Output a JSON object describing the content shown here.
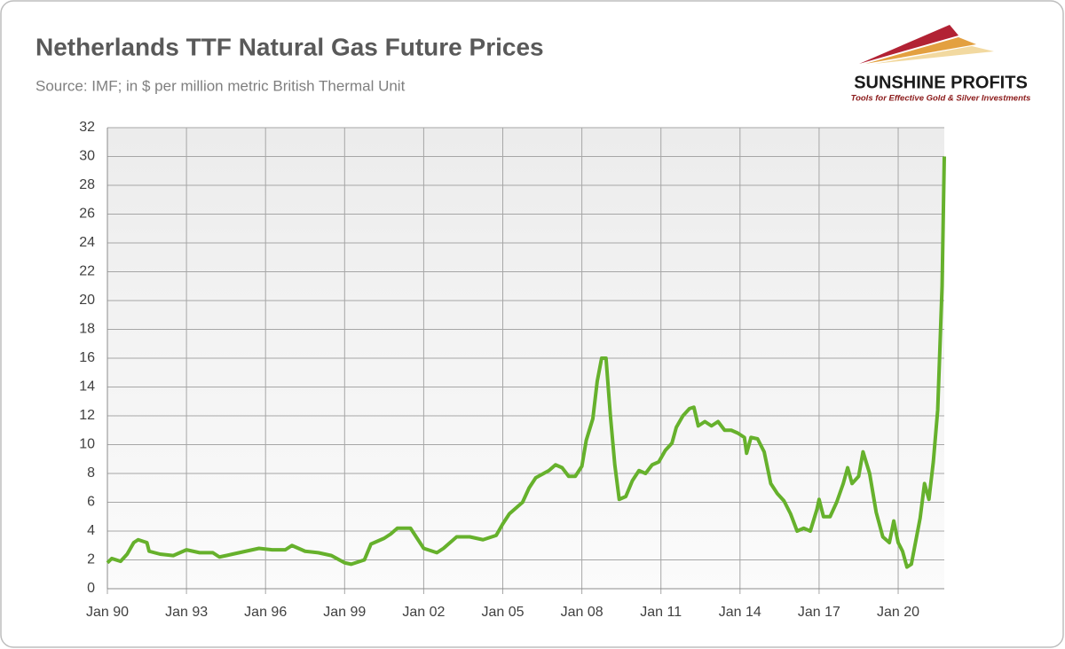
{
  "chart_data": {
    "type": "line",
    "title": "Netherlands TTF Natural Gas Future Prices",
    "subtitle": "Source: IMF; in $ per million metric British Thermal Unit",
    "color": "#66b12c",
    "grid": true,
    "xlim": [
      "1990-01",
      "2021-10"
    ],
    "xticks": [
      {
        "value": "1990-01",
        "label": "Jan 90"
      },
      {
        "value": "1993-01",
        "label": "Jan 93"
      },
      {
        "value": "1996-01",
        "label": "Jan 96"
      },
      {
        "value": "1999-01",
        "label": "Jan 99"
      },
      {
        "value": "2002-01",
        "label": "Jan 02"
      },
      {
        "value": "2005-01",
        "label": "Jan 05"
      },
      {
        "value": "2008-01",
        "label": "Jan 08"
      },
      {
        "value": "2011-01",
        "label": "Jan 11"
      },
      {
        "value": "2014-01",
        "label": "Jan 14"
      },
      {
        "value": "2017-01",
        "label": "Jan 17"
      },
      {
        "value": "2020-01",
        "label": "Jan 20"
      }
    ],
    "ylim": [
      0,
      32
    ],
    "yticks": [
      0,
      2,
      4,
      6,
      8,
      10,
      12,
      14,
      16,
      18,
      20,
      22,
      24,
      26,
      28,
      30,
      32
    ],
    "x": [
      "1990-01",
      "1990-03",
      "1990-07",
      "1990-10",
      "1991-01",
      "1991-03",
      "1991-07",
      "1991-08",
      "1992-01",
      "1992-07",
      "1993-01",
      "1993-07",
      "1994-01",
      "1994-04",
      "1994-10",
      "1995-04",
      "1995-10",
      "1996-04",
      "1996-10",
      "1997-01",
      "1997-07",
      "1998-01",
      "1998-07",
      "1999-01",
      "1999-04",
      "1999-10",
      "2000-01",
      "2000-07",
      "2000-10",
      "2001-01",
      "2001-07",
      "2001-10",
      "2002-01",
      "2002-07",
      "2002-10",
      "2003-01",
      "2003-04",
      "2003-10",
      "2004-04",
      "2004-10",
      "2005-01",
      "2005-04",
      "2005-10",
      "2006-01",
      "2006-04",
      "2006-10",
      "2007-01",
      "2007-04",
      "2007-07",
      "2007-10",
      "2008-01",
      "2008-03",
      "2008-06",
      "2008-08",
      "2008-10",
      "2008-12",
      "2009-02",
      "2009-04",
      "2009-06",
      "2009-09",
      "2009-12",
      "2010-03",
      "2010-06",
      "2010-09",
      "2010-12",
      "2011-03",
      "2011-06",
      "2011-08",
      "2011-11",
      "2012-02",
      "2012-04",
      "2012-06",
      "2012-09",
      "2012-12",
      "2013-03",
      "2013-06",
      "2013-09",
      "2013-12",
      "2014-03",
      "2014-04",
      "2014-06",
      "2014-09",
      "2014-12",
      "2015-03",
      "2015-06",
      "2015-09",
      "2015-12",
      "2016-03",
      "2016-06",
      "2016-09",
      "2016-12",
      "2017-01",
      "2017-03",
      "2017-06",
      "2017-09",
      "2017-12",
      "2018-02",
      "2018-04",
      "2018-07",
      "2018-09",
      "2018-12",
      "2019-03",
      "2019-06",
      "2019-09",
      "2019-11",
      "2020-01",
      "2020-03",
      "2020-05",
      "2020-07",
      "2020-09",
      "2020-11",
      "2021-01",
      "2021-03",
      "2021-05",
      "2021-07",
      "2021-09",
      "2021-10"
    ],
    "values": [
      1.8,
      2.1,
      1.9,
      2.4,
      3.2,
      3.4,
      3.2,
      2.6,
      2.4,
      2.3,
      2.7,
      2.5,
      2.5,
      2.2,
      2.4,
      2.6,
      2.8,
      2.7,
      2.7,
      3.0,
      2.6,
      2.5,
      2.3,
      1.8,
      1.7,
      2.0,
      3.1,
      3.5,
      3.8,
      4.2,
      4.2,
      3.5,
      2.8,
      2.5,
      2.8,
      3.2,
      3.6,
      3.6,
      3.4,
      3.7,
      4.5,
      5.2,
      6.0,
      7.0,
      7.7,
      8.2,
      8.6,
      8.4,
      7.8,
      7.8,
      8.5,
      10.3,
      11.8,
      14.4,
      16.0,
      16.0,
      12.0,
      8.6,
      6.2,
      6.4,
      7.5,
      8.2,
      8.0,
      8.6,
      8.8,
      9.6,
      10.1,
      11.2,
      12.0,
      12.5,
      12.6,
      11.3,
      11.6,
      11.3,
      11.6,
      11.0,
      11.0,
      10.8,
      10.5,
      9.4,
      10.5,
      10.4,
      9.5,
      7.3,
      6.6,
      6.1,
      5.2,
      4.0,
      4.2,
      4.0,
      5.5,
      6.2,
      5.0,
      5.0,
      6.0,
      7.3,
      8.4,
      7.3,
      7.8,
      9.5,
      8.0,
      5.3,
      3.6,
      3.2,
      4.7,
      3.2,
      2.6,
      1.5,
      1.7,
      3.3,
      4.9,
      7.3,
      6.2,
      8.8,
      12.4,
      21.0,
      30.0
    ]
  },
  "logo": {
    "name": "SUNSHINE PROFITS",
    "tagline": "Tools for Effective Gold & Silver Investments"
  }
}
